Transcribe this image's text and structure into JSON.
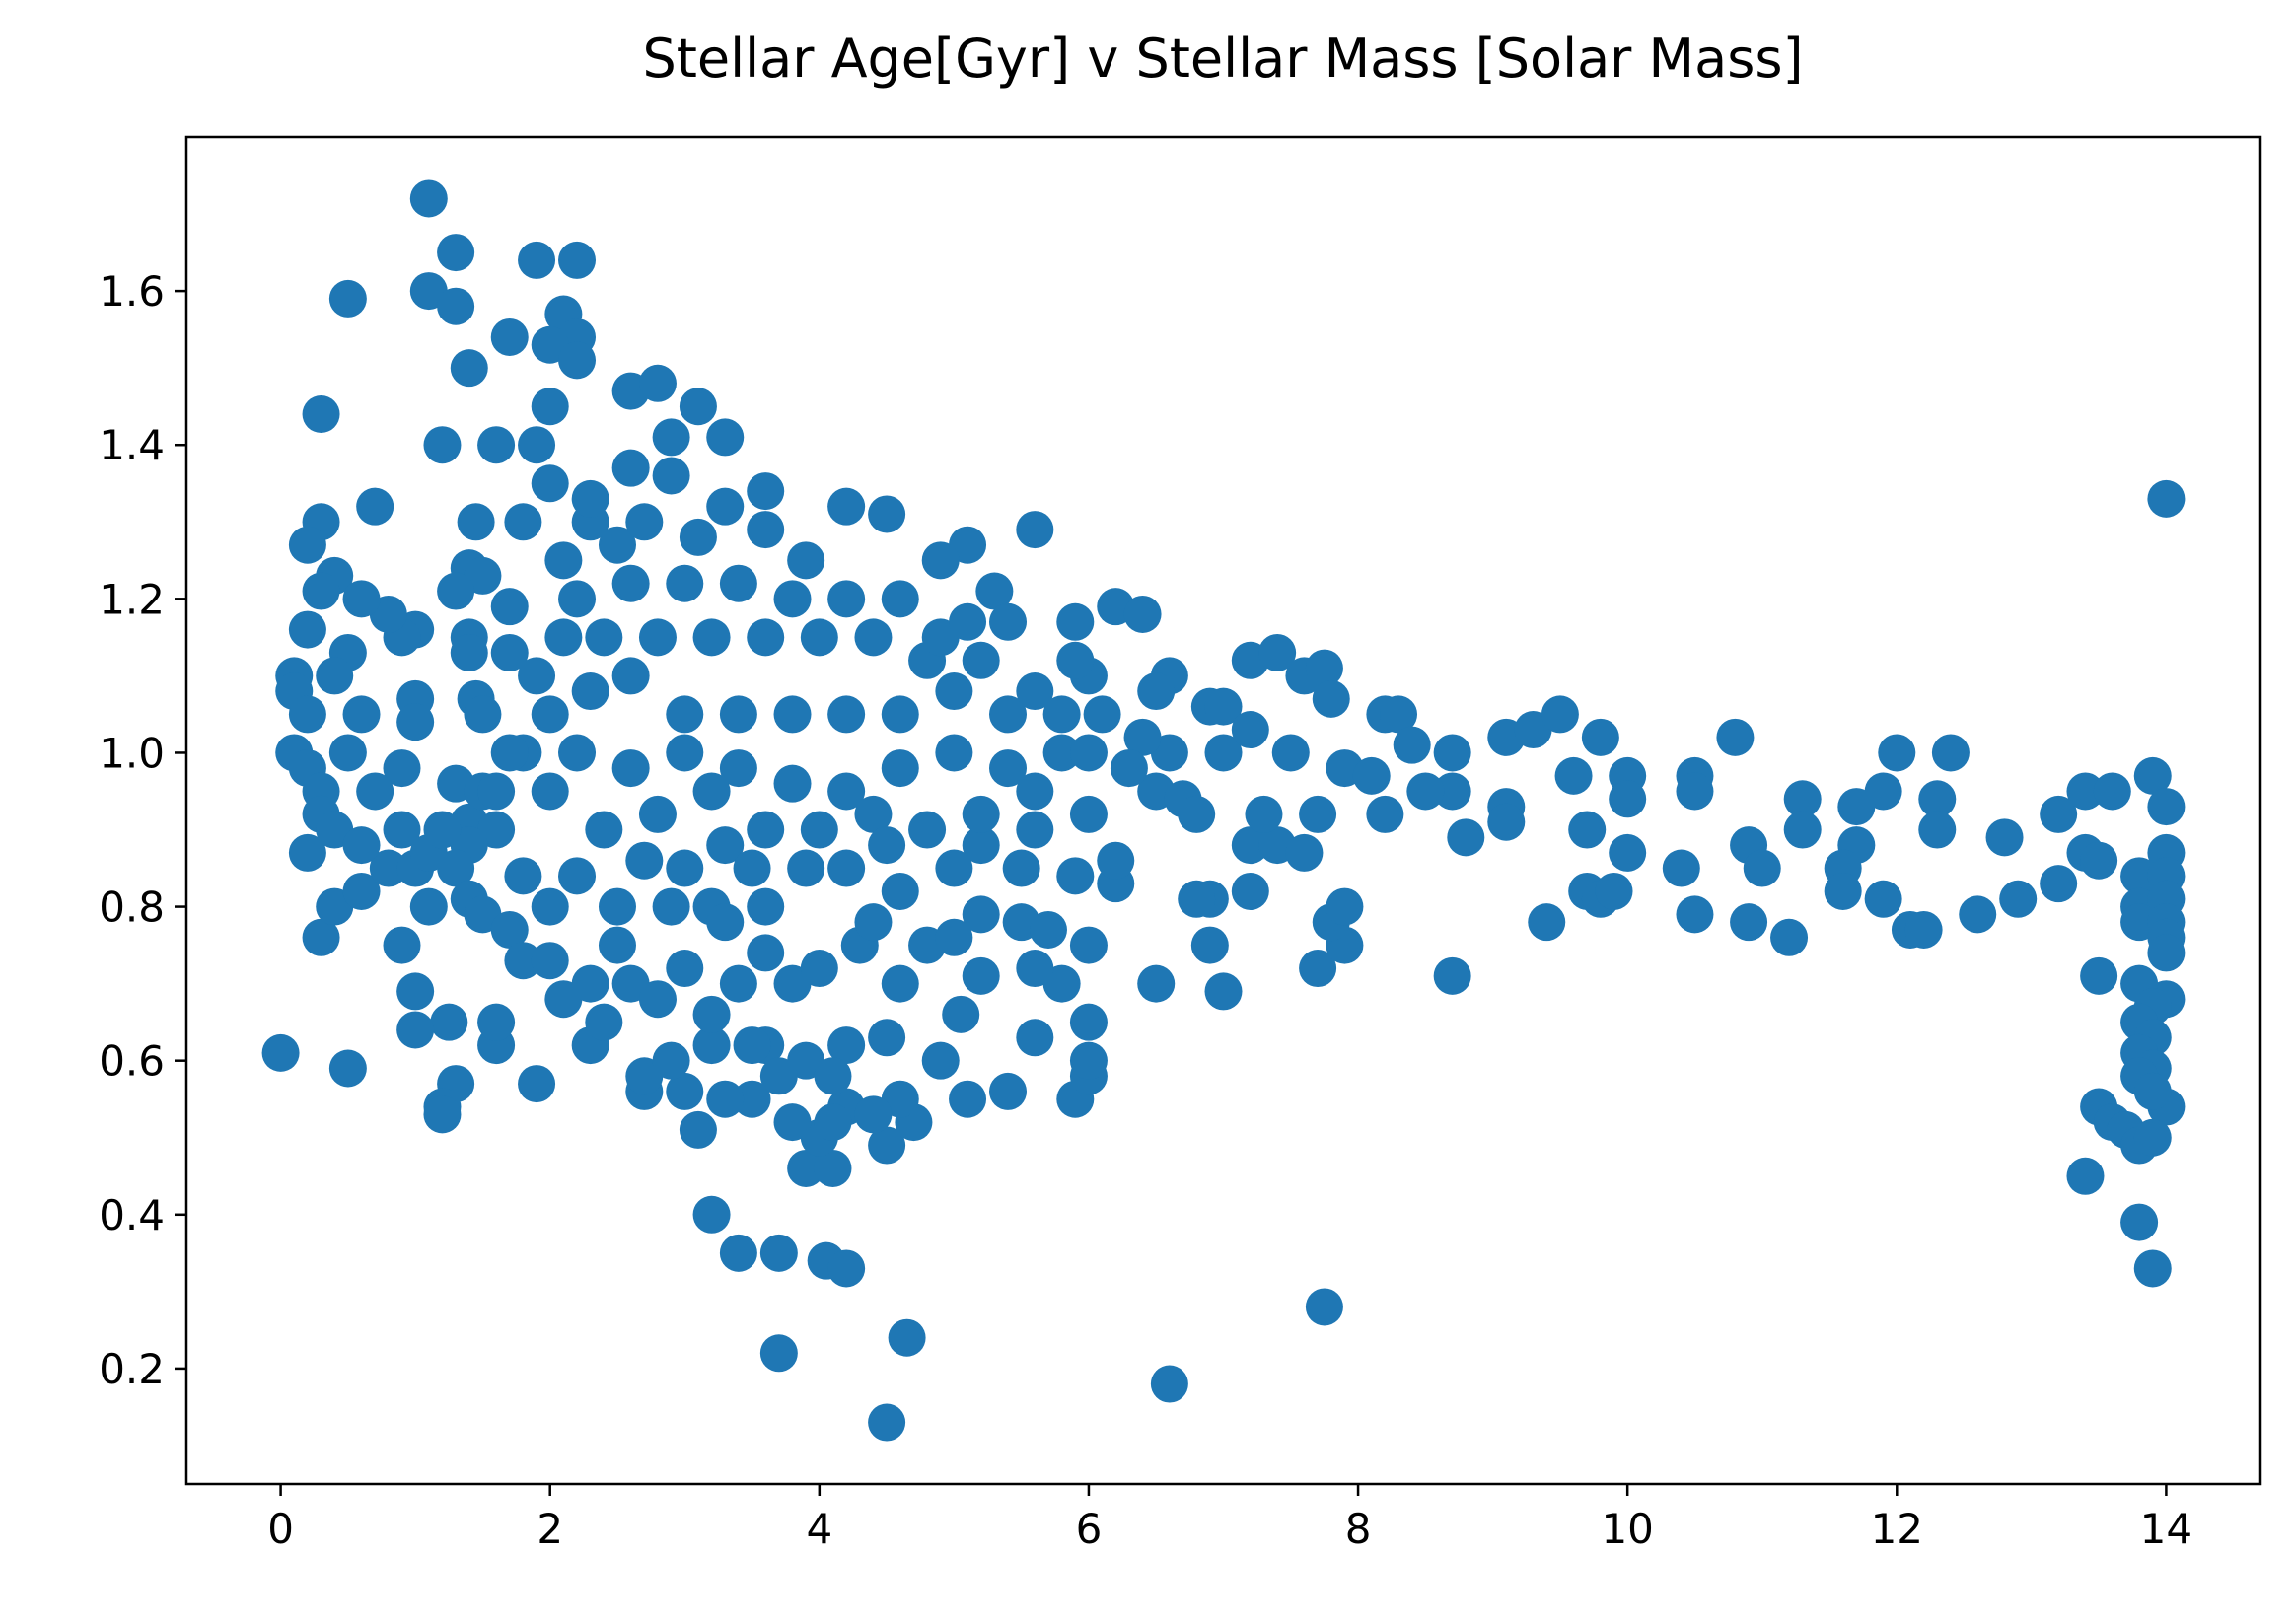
{
  "chart_data": {
    "type": "scatter",
    "title": "Stellar Age[Gyr] v Stellar Mass [Solar Mass]",
    "xlim": [
      -0.7,
      14.7
    ],
    "ylim": [
      0.05,
      1.8
    ],
    "xticks": [
      0,
      2,
      4,
      6,
      8,
      10,
      12,
      14
    ],
    "yticks": [
      {
        "value": 0.2,
        "label": "0.2"
      },
      {
        "value": 0.4,
        "label": "0.4"
      },
      {
        "value": 0.6,
        "label": "0.6"
      },
      {
        "value": 0.8,
        "label": "0.8"
      },
      {
        "value": 1.0,
        "label": "1.0"
      },
      {
        "value": 1.2,
        "label": "1.2"
      },
      {
        "value": 1.4,
        "label": "1.4"
      },
      {
        "value": 1.6,
        "label": "1.6"
      }
    ],
    "grid": false,
    "series": [
      {
        "color": "#1f77b4",
        "x": [
          0,
          0.5,
          0.3,
          0.5,
          0.3,
          0.7,
          0.3,
          0.2,
          1.1,
          1.3,
          1.1,
          1.3,
          1.9,
          2.2,
          2.1,
          2.2,
          1.7,
          2.0,
          2.2,
          1.4,
          2.0,
          1.6,
          1.2,
          1.9,
          1.8,
          1.45,
          2.6,
          2.8,
          3.1,
          3.3,
          2.9,
          2.6,
          2.9,
          3.6,
          3.3,
          4.2,
          4.5,
          5.6,
          3.6,
          5.1,
          4.9,
          3.9,
          5.3,
          6.2,
          6.4,
          5.9,
          5.4,
          7.2,
          7.4,
          7.6,
          7.75,
          7.8,
          6.6,
          6.5,
          6.9,
          7.0,
          8.2,
          8.3,
          8.4,
          8.7,
          9.1,
          9.3,
          9.5,
          9.8,
          10.0,
          10.0,
          10.5,
          10.5,
          10.8,
          12.0,
          12.4,
          11.3,
          12.3,
          11.9,
          11.7,
          11.3,
          12.3,
          12.8,
          13.2,
          13.4,
          13.6,
          13.9,
          14.0,
          10.9,
          11.0,
          11.7,
          11.6,
          10.4,
          10.0,
          9.7,
          9.6,
          8.8,
          8.2,
          7.2,
          7.4,
          7.6,
          7.7,
          7.3,
          8.7,
          8.5,
          9.1,
          9.1,
          9.7,
          9.8,
          9.9,
          10.5,
          10.9,
          11.2,
          11.6,
          11.9,
          12.1,
          12.2,
          12.6,
          12.9,
          13.2,
          13.4,
          13.5,
          13.8,
          13.8,
          13.8,
          14.0,
          14.0,
          14.0,
          14.0,
          14.0,
          14.0,
          14.0,
          14.0,
          13.5,
          13.8,
          13.9,
          13.8,
          13.9,
          13.8,
          13.9,
          13.8,
          13.9,
          13.5,
          13.6,
          13.7,
          13.8,
          13.9,
          13.4,
          13.8,
          13.9,
          14.0,
          9.4,
          8.7,
          7.7,
          7.9,
          7.8,
          7.9,
          7.2,
          6.9,
          6.8,
          6.9,
          7.0,
          6.5,
          7.75,
          6.6,
          4.5,
          4.65,
          3.7,
          3.7,
          3.4,
          3.2,
          4.05,
          4.2,
          3.1,
          3.9,
          4.1,
          4.5,
          4.7,
          4.6,
          5.1,
          5.4,
          5.9,
          6.0,
          6.0,
          6.0,
          5.6,
          5.05,
          5.2,
          4.9,
          4.5,
          4.2,
          4.2,
          4.4,
          4.0,
          4.1,
          3.8,
          3.5,
          3.3,
          3.0,
          2.7,
          2.7,
          2.9,
          3.2,
          3.6,
          3.9,
          4.1,
          2.3,
          2.4,
          1.9,
          1.6,
          1.6,
          1.3,
          1.2,
          1.2,
          1.25,
          1.0,
          1.0,
          0.9,
          1.1,
          0.4,
          0.6,
          0.8,
          0.2,
          0.9,
          1.0,
          1.0,
          1.0,
          0.9,
          0.8,
          0.4,
          0.3,
          0.2,
          0.1,
          0.1,
          0.2,
          0.1,
          0.2,
          0.3,
          0.3,
          0.4,
          0.5,
          0.6,
          0.7,
          0.6,
          0.5,
          0.4,
          0.6,
          1.4,
          1.5,
          1.3,
          1.4,
          1.4,
          1.7,
          1.7,
          1.45,
          1.5,
          1.3,
          1.4,
          1.5,
          1.6,
          1.4,
          1.3,
          1.4,
          1.5,
          1.8,
          1.7,
          1.8,
          2.0,
          2.1,
          2.3,
          2.0,
          2.2,
          2.5,
          2.7,
          2.6,
          2.8,
          3.0,
          3.2,
          3.4,
          3.6,
          3.8,
          4.0,
          4.3,
          4.6,
          4.8,
          5.2,
          5.5,
          5.7,
          5.9,
          6.2,
          6.2,
          6.0,
          5.8,
          5.6,
          5.0,
          4.6,
          4.2,
          3.9,
          3.6,
          3.2,
          2.9,
          3.3,
          3.6,
          4.0,
          4.4,
          4.8,
          5.2,
          5.6,
          6.0,
          6.5,
          6.7,
          6.8,
          6.6,
          6.4,
          6.1,
          5.8,
          5.4,
          5.0,
          4.6,
          4.2,
          3.8,
          3.4,
          3.0,
          2.6,
          2.2,
          1.8,
          2.0,
          2.4,
          2.8,
          3.2,
          3.0,
          3.4,
          3.8,
          4.2,
          4.6,
          5.0,
          5.4,
          5.8,
          6.0,
          5.6,
          5.2,
          4.8,
          4.4,
          4.0,
          3.6,
          3.2,
          2.8,
          2.4,
          2.1,
          2.2,
          2.6,
          3.0,
          3.4,
          3.8,
          4.2,
          4.6,
          2.5,
          2.3,
          2.1,
          2.7,
          3.1,
          2.3,
          2.0,
          1.9,
          2.0,
          2.3,
          2.6,
          1.7,
          1.6,
          0.9,
          1.0,
          1.1,
          1.2,
          3.0,
          3.5,
          4.5,
          5.0,
          5.5,
          2.5,
          3.5,
          3.7,
          3.3,
          4.4,
          5.2,
          5.6,
          6.3,
          7.0,
          7.2,
          7.5,
          7.9,
          8.1,
          4.9,
          5.1,
          5.9,
          6.0
        ],
        "values": [
          0.61,
          0.59,
          0.76,
          1.59,
          1.44,
          1.32,
          1.3,
          1.27,
          1.72,
          1.65,
          1.6,
          1.58,
          1.64,
          1.64,
          1.57,
          1.54,
          1.54,
          1.53,
          1.51,
          1.5,
          1.45,
          1.4,
          1.4,
          1.4,
          1.3,
          1.3,
          1.47,
          1.48,
          1.45,
          1.41,
          1.41,
          1.37,
          1.36,
          1.34,
          1.32,
          1.32,
          1.31,
          1.29,
          1.29,
          1.27,
          1.25,
          1.25,
          1.21,
          1.19,
          1.18,
          1.17,
          1.17,
          1.12,
          1.13,
          1.1,
          1.11,
          1.07,
          1.1,
          1.08,
          1.06,
          1.06,
          1.05,
          1.05,
          1.01,
          1.0,
          1.02,
          1.03,
          1.05,
          1.02,
          0.97,
          0.94,
          0.97,
          0.95,
          1.02,
          1.0,
          1.0,
          0.94,
          0.94,
          0.95,
          0.93,
          0.9,
          0.9,
          0.89,
          0.92,
          0.95,
          0.95,
          0.97,
          0.93,
          0.88,
          0.85,
          0.88,
          0.85,
          0.85,
          0.87,
          0.9,
          0.97,
          0.89,
          0.92,
          0.88,
          0.88,
          0.87,
          0.92,
          0.92,
          0.95,
          0.95,
          0.93,
          0.91,
          0.82,
          0.81,
          0.82,
          0.79,
          0.78,
          0.76,
          0.82,
          0.81,
          0.77,
          0.77,
          0.79,
          0.81,
          0.83,
          0.87,
          0.86,
          0.84,
          0.8,
          0.78,
          0.87,
          0.84,
          0.81,
          0.78,
          0.76,
          0.74,
          0.68,
          0.54,
          0.71,
          0.7,
          0.67,
          0.65,
          0.63,
          0.61,
          0.59,
          0.58,
          0.56,
          0.54,
          0.52,
          0.51,
          0.49,
          0.5,
          0.45,
          0.39,
          0.33,
          1.33,
          0.78,
          0.71,
          0.72,
          0.75,
          0.78,
          0.8,
          0.82,
          0.81,
          0.81,
          0.75,
          0.69,
          0.7,
          0.28,
          0.18,
          0.13,
          0.24,
          0.22,
          0.35,
          0.35,
          0.4,
          0.34,
          0.33,
          0.51,
          0.46,
          0.46,
          0.49,
          0.52,
          0.55,
          0.55,
          0.56,
          0.55,
          0.58,
          0.6,
          0.65,
          0.63,
          0.66,
          0.71,
          0.6,
          0.63,
          0.62,
          0.54,
          0.53,
          0.5,
          0.52,
          0.52,
          0.55,
          0.55,
          0.56,
          0.56,
          0.58,
          0.6,
          0.62,
          0.62,
          0.6,
          0.58,
          0.62,
          0.65,
          0.57,
          0.62,
          0.65,
          0.57,
          0.54,
          0.53,
          0.65,
          0.64,
          0.69,
          0.75,
          0.8,
          0.8,
          0.82,
          0.85,
          0.87,
          0.98,
          1.07,
          1.04,
          1.16,
          1.15,
          1.18,
          1.23,
          1.21,
          1.16,
          1.1,
          1.08,
          1.05,
          1.0,
          0.98,
          0.95,
          0.92,
          0.9,
          1.0,
          1.05,
          0.95,
          0.88,
          1.13,
          1.1,
          1.2,
          1.24,
          1.23,
          1.21,
          1.15,
          1.13,
          1.19,
          1.13,
          1.07,
          1.05,
          0.96,
          0.91,
          0.95,
          0.9,
          0.88,
          0.85,
          0.81,
          0.79,
          0.84,
          0.77,
          0.73,
          0.73,
          0.68,
          0.7,
          0.8,
          0.84,
          0.8,
          0.86,
          0.7,
          0.68,
          0.72,
          0.66,
          0.7,
          0.74,
          0.7,
          0.72,
          0.75,
          0.7,
          0.75,
          0.79,
          0.78,
          0.77,
          0.84,
          0.83,
          0.86,
          0.75,
          0.7,
          0.72,
          0.76,
          0.82,
          0.85,
          0.85,
          0.8,
          0.8,
          0.8,
          0.88,
          0.9,
          0.9,
          0.92,
          0.9,
          0.88,
          0.9,
          0.92,
          0.95,
          0.94,
          0.92,
          1.0,
          1.02,
          1.05,
          1.0,
          0.98,
          1.0,
          0.98,
          0.95,
          0.96,
          0.98,
          1.0,
          0.98,
          1.0,
          1.0,
          0.95,
          0.9,
          0.92,
          0.95,
          1.05,
          1.05,
          1.05,
          1.05,
          1.05,
          1.08,
          1.05,
          1.05,
          1.1,
          1.08,
          1.12,
          1.12,
          1.15,
          1.15,
          1.15,
          1.15,
          1.15,
          1.15,
          1.15,
          1.2,
          1.22,
          1.22,
          1.22,
          1.2,
          1.2,
          1.2,
          1.27,
          1.3,
          1.25,
          1.3,
          1.28,
          1.33,
          1.35,
          1.1,
          1.05,
          1.08,
          1.1,
          1.0,
          0.95,
          0.9,
          0.85,
          0.87,
          0.9,
          0.85,
          0.85,
          0.88,
          0.85,
          0.85,
          0.75,
          0.62,
          0.58,
          0.78,
          0.78,
          0.92,
          0.95,
          0.98,
          1.0,
          1.03,
          1.0,
          0.98,
          0.97,
          1.15,
          1.17,
          1.12,
          1.0
        ]
      }
    ]
  }
}
